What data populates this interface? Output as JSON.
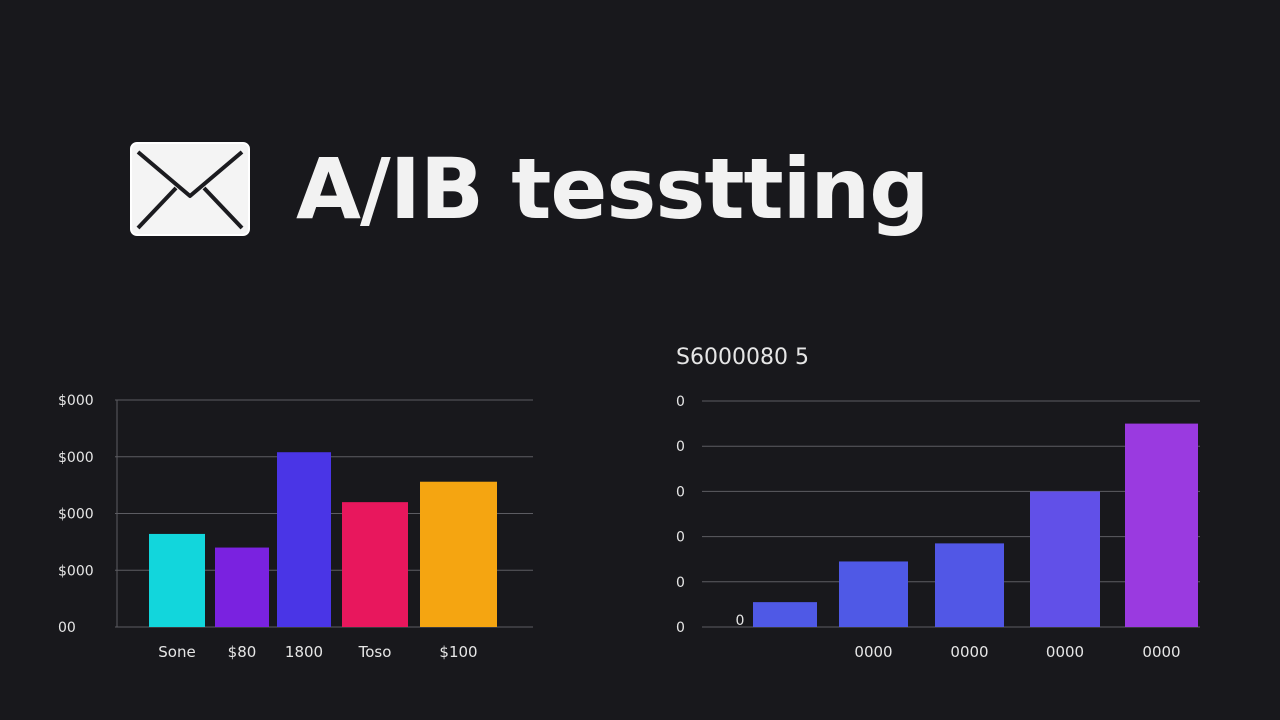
{
  "page": {
    "title": "A/IB tesstting",
    "icon": "mail-envelope-icon"
  },
  "chart_data": [
    {
      "type": "bar",
      "title": "",
      "y_ticks": [
        "$000",
        "$000",
        "$000",
        "$000",
        "00"
      ],
      "categories": [
        "Sone",
        "$80",
        "1800",
        "Toso",
        "$100"
      ],
      "values": [
        41,
        35,
        77,
        55,
        64
      ],
      "colors": [
        "#12d6dc",
        "#7a22e0",
        "#4a35e6",
        "#e8175d",
        "#f5a511"
      ],
      "ylim": [
        0,
        100
      ],
      "grid": true
    },
    {
      "type": "bar",
      "title": "S6000080 5",
      "y_ticks": [
        "0",
        "0",
        "0",
        "0",
        "0",
        "0"
      ],
      "x_extra_label": "0",
      "categories": [
        "",
        "0000",
        "0000",
        "0000",
        "0000"
      ],
      "values": [
        11,
        29,
        37,
        60,
        90
      ],
      "colors": [
        "#4f59e6",
        "#4f59e6",
        "#5157e6",
        "#6150e8",
        "#9a3ae0"
      ],
      "ylim": [
        0,
        100
      ],
      "grid": true
    }
  ]
}
